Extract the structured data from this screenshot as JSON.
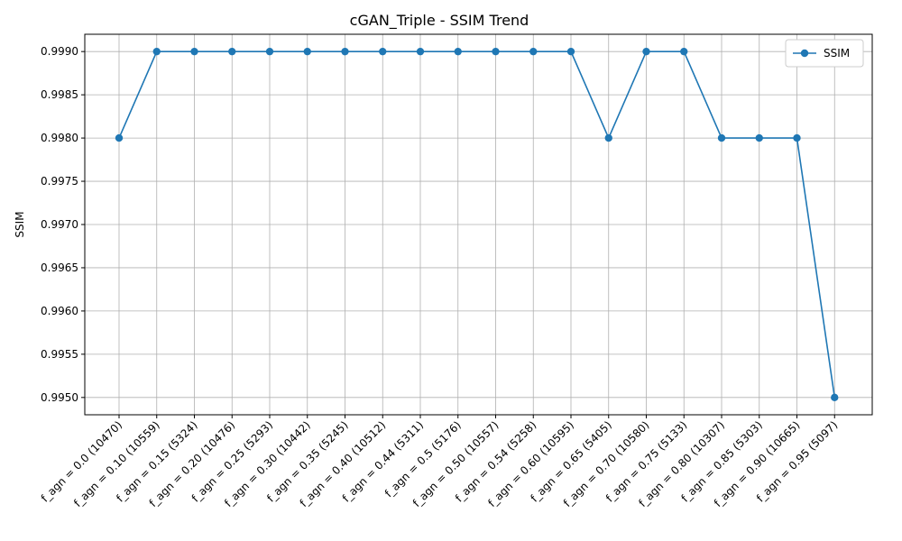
{
  "chart_data": {
    "type": "line",
    "title": "cGAN_Triple - SSIM Trend",
    "xlabel": "",
    "ylabel": "SSIM",
    "categories": [
      "f_agn = 0.0 (10470)",
      "f_agn = 0.10 (10559)",
      "f_agn = 0.15 (5324)",
      "f_agn = 0.20 (10476)",
      "f_agn = 0.25 (5293)",
      "f_agn = 0.30 (10442)",
      "f_agn = 0.35 (5245)",
      "f_agn = 0.40 (10512)",
      "f_agn = 0.44 (5311)",
      "f_agn = 0.5 (5176)",
      "f_agn = 0.50 (10557)",
      "f_agn = 0.54 (5258)",
      "f_agn = 0.60 (10595)",
      "f_agn = 0.65 (5405)",
      "f_agn = 0.70 (10580)",
      "f_agn = 0.75 (5133)",
      "f_agn = 0.80 (10307)",
      "f_agn = 0.85 (5303)",
      "f_agn = 0.90 (10665)",
      "f_agn = 0.95 (5097)"
    ],
    "series": [
      {
        "name": "SSIM",
        "color": "#1f77b4",
        "marker": "circle",
        "values": [
          0.998,
          0.999,
          0.999,
          0.999,
          0.999,
          0.999,
          0.999,
          0.999,
          0.999,
          0.999,
          0.999,
          0.999,
          0.999,
          0.998,
          0.999,
          0.999,
          0.998,
          0.998,
          0.998,
          0.995
        ]
      }
    ],
    "ylim": [
      0.9948,
      0.9992
    ],
    "yticks": [
      "0.9950",
      "0.9955",
      "0.9960",
      "0.9965",
      "0.9970",
      "0.9975",
      "0.9980",
      "0.9985",
      "0.9990"
    ],
    "grid": true,
    "legend_position": "top-right"
  }
}
